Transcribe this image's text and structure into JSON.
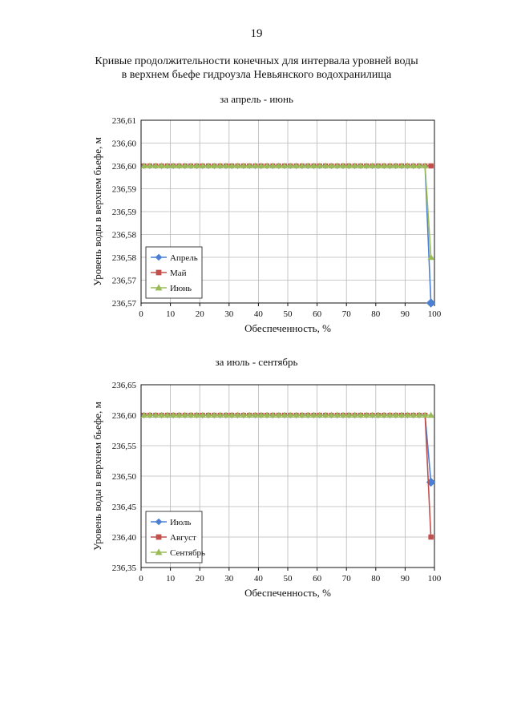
{
  "page_number": "19",
  "title": {
    "line1": "Кривые продолжительности конечных для интервала уровней воды",
    "line2": "в верхнем бьефе гидроузла Невьянского водохранилища"
  },
  "chart_data": [
    {
      "type": "line",
      "title": "за апрель - июнь",
      "xlabel": "Обеспеченность, %",
      "ylabel": "Уровень воды в верхнем бьефе, м",
      "xlim": [
        0,
        100
      ],
      "ylim": [
        236.57,
        236.61
      ],
      "x_ticks": [
        "0",
        "10",
        "20",
        "30",
        "40",
        "50",
        "60",
        "70",
        "80",
        "90",
        "100"
      ],
      "y_ticks": [
        "236,57",
        "236,57",
        "236,58",
        "236,58",
        "236,59",
        "236,59",
        "236,60",
        "236,60",
        "236,61"
      ],
      "legend_position": "bottom-left",
      "series": [
        {
          "name": "Апрель",
          "color": "#4a7fd4",
          "marker": "diamond",
          "points": [
            [
              1,
              236.6
            ],
            [
              96.8,
              236.6
            ],
            [
              98.8,
              236.57
            ]
          ]
        },
        {
          "name": "Май",
          "color": "#c0504d",
          "marker": "square",
          "points": [
            [
              1,
              236.6
            ],
            [
              96.8,
              236.6
            ],
            [
              98.8,
              236.6
            ]
          ]
        },
        {
          "name": "Июнь",
          "color": "#9bbb59",
          "marker": "triangle",
          "points": [
            [
              1,
              236.6
            ],
            [
              96.8,
              236.6
            ],
            [
              98.8,
              236.58
            ]
          ]
        }
      ]
    },
    {
      "type": "line",
      "title": "за июль - сентябрь",
      "xlabel": "Обеспеченность, %",
      "ylabel": "Уровень воды в верхнем бьефе, м",
      "xlim": [
        0,
        100
      ],
      "ylim": [
        236.35,
        236.65
      ],
      "x_ticks": [
        "0",
        "10",
        "20",
        "30",
        "40",
        "50",
        "60",
        "70",
        "80",
        "90",
        "100"
      ],
      "y_ticks": [
        "236,35",
        "236,40",
        "236,45",
        "236,50",
        "236,55",
        "236,60",
        "236,65"
      ],
      "legend_position": "bottom-left",
      "series": [
        {
          "name": "Июль",
          "color": "#4a7fd4",
          "marker": "diamond",
          "points": [
            [
              1,
              236.6
            ],
            [
              96.8,
              236.6
            ],
            [
              98.8,
              236.49
            ]
          ]
        },
        {
          "name": "Август",
          "color": "#c0504d",
          "marker": "square",
          "points": [
            [
              1,
              236.6
            ],
            [
              96.8,
              236.6
            ],
            [
              98.8,
              236.4
            ]
          ]
        },
        {
          "name": "Сентябрь",
          "color": "#9bbb59",
          "marker": "triangle",
          "points": [
            [
              1,
              236.6
            ],
            [
              96.8,
              236.6
            ],
            [
              98.8,
              236.6
            ]
          ]
        }
      ]
    }
  ]
}
